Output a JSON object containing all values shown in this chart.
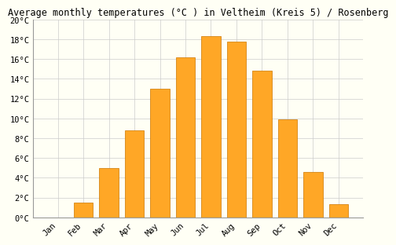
{
  "title": "Average monthly temperatures (°C ) in Veltheim (Kreis 5) / Rosenberg",
  "months": [
    "Jan",
    "Feb",
    "Mar",
    "Apr",
    "May",
    "Jun",
    "Jul",
    "Aug",
    "Sep",
    "Oct",
    "Nov",
    "Dec"
  ],
  "values": [
    0.0,
    1.5,
    5.0,
    8.8,
    13.0,
    16.2,
    18.3,
    17.8,
    14.8,
    9.9,
    4.6,
    1.3
  ],
  "bar_color": "#FFA726",
  "bar_edge_color": "#CC7700",
  "background_color": "#FFFFF5",
  "plot_bg_color": "#FFFFF5",
  "grid_color": "#CCCCCC",
  "title_fontsize": 8.5,
  "tick_fontsize": 7.5,
  "ylim": [
    0,
    20
  ],
  "yticks": [
    0,
    2,
    4,
    6,
    8,
    10,
    12,
    14,
    16,
    18,
    20
  ],
  "ytick_labels": [
    "0°C",
    "2°C",
    "4°C",
    "6°C",
    "8°C",
    "10°C",
    "12°C",
    "14°C",
    "16°C",
    "18°C",
    "20°C"
  ]
}
